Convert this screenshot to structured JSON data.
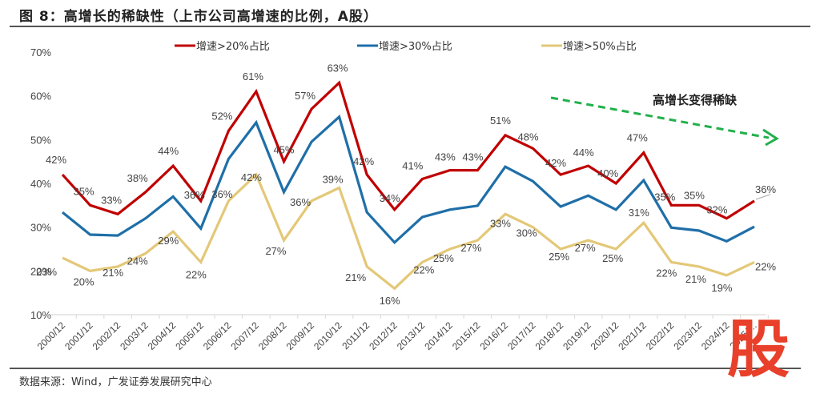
{
  "header": {
    "title": "图 8：高增长的稀缺性（上市公司高增速的比例，A股）"
  },
  "footer": {
    "source": "数据来源：Wind，广发证券发展研究中心"
  },
  "watermark": {
    "text": "股",
    "color": "#e8402a"
  },
  "chart_data": {
    "type": "line",
    "title": "高增长的稀缺性（上市公司高增速的比例，A股）",
    "xlabel": "",
    "ylabel": "",
    "ylim": [
      0.1,
      0.7
    ],
    "yticks": [
      0.1,
      0.2,
      0.3,
      0.4,
      0.5,
      0.6,
      0.7
    ],
    "ytick_labels": [
      "10%",
      "20%",
      "30%",
      "40%",
      "50%",
      "60%",
      "70%"
    ],
    "grid": false,
    "legend_position": "top",
    "categories": [
      "2000/12",
      "2001/12",
      "2002/12",
      "2003/12",
      "2004/12",
      "2005/12",
      "2006/12",
      "2007/12",
      "2008/12",
      "2009/12",
      "2010/12",
      "2011/12",
      "2012/12",
      "2013/12",
      "2014/12",
      "2015/12",
      "2016/12",
      "2017/12",
      "2018/12",
      "2019/12",
      "2020/12",
      "2021/12",
      "2022/12",
      "2023/12",
      "2024/12",
      "2025/…"
    ],
    "series": [
      {
        "name": "增速>20%占比",
        "color": "#c00000",
        "values": [
          0.42,
          0.35,
          0.33,
          0.38,
          0.44,
          0.36,
          0.52,
          0.61,
          0.45,
          0.57,
          0.63,
          0.42,
          0.34,
          0.41,
          0.43,
          0.43,
          0.51,
          0.48,
          0.42,
          0.44,
          0.4,
          0.47,
          0.35,
          0.35,
          0.32,
          0.36
        ],
        "labels": [
          "42%",
          "35%",
          "33%",
          "38%",
          "44%",
          "36%",
          "52%",
          "61%",
          "45%",
          "57%",
          "63%",
          "42%",
          "34%",
          "41%",
          "43%",
          "43%",
          "51%",
          "48%",
          "42%",
          "44%",
          "40%",
          "47%",
          "35%",
          "35%",
          "32%",
          "36%"
        ]
      },
      {
        "name": "增速>30%占比",
        "color": "#1f6fa8",
        "values": [
          0.334,
          0.283,
          0.281,
          0.32,
          0.37,
          0.297,
          0.456,
          0.539,
          0.38,
          0.495,
          0.552,
          0.334,
          0.265,
          0.323,
          0.34,
          0.349,
          0.438,
          0.405,
          0.347,
          0.372,
          0.34,
          0.407,
          0.299,
          0.292,
          0.268,
          0.301
        ],
        "labels": []
      },
      {
        "name": "增速>50%占比",
        "color": "#e3c878",
        "values": [
          0.23,
          0.2,
          0.21,
          0.24,
          0.29,
          0.22,
          0.36,
          0.42,
          0.27,
          0.36,
          0.39,
          0.21,
          0.16,
          0.22,
          0.25,
          0.27,
          0.33,
          0.3,
          0.25,
          0.27,
          0.25,
          0.31,
          0.22,
          0.21,
          0.19,
          0.22
        ],
        "labels": [
          "23%",
          "20%",
          "21%",
          "24%",
          "29%",
          "22%",
          "36%",
          "42%",
          "27%",
          "36%",
          "39%",
          "21%",
          "16%",
          "22%",
          "25%",
          "27%",
          "33%",
          "30%",
          "25%",
          "27%",
          "25%",
          "31%",
          "22%",
          "21%",
          "19%",
          "22%"
        ]
      }
    ],
    "annotations": [
      {
        "text": "高增长变得稀缺",
        "type": "trend-arrow",
        "direction": "down-right",
        "color": "#22b04b"
      }
    ]
  }
}
